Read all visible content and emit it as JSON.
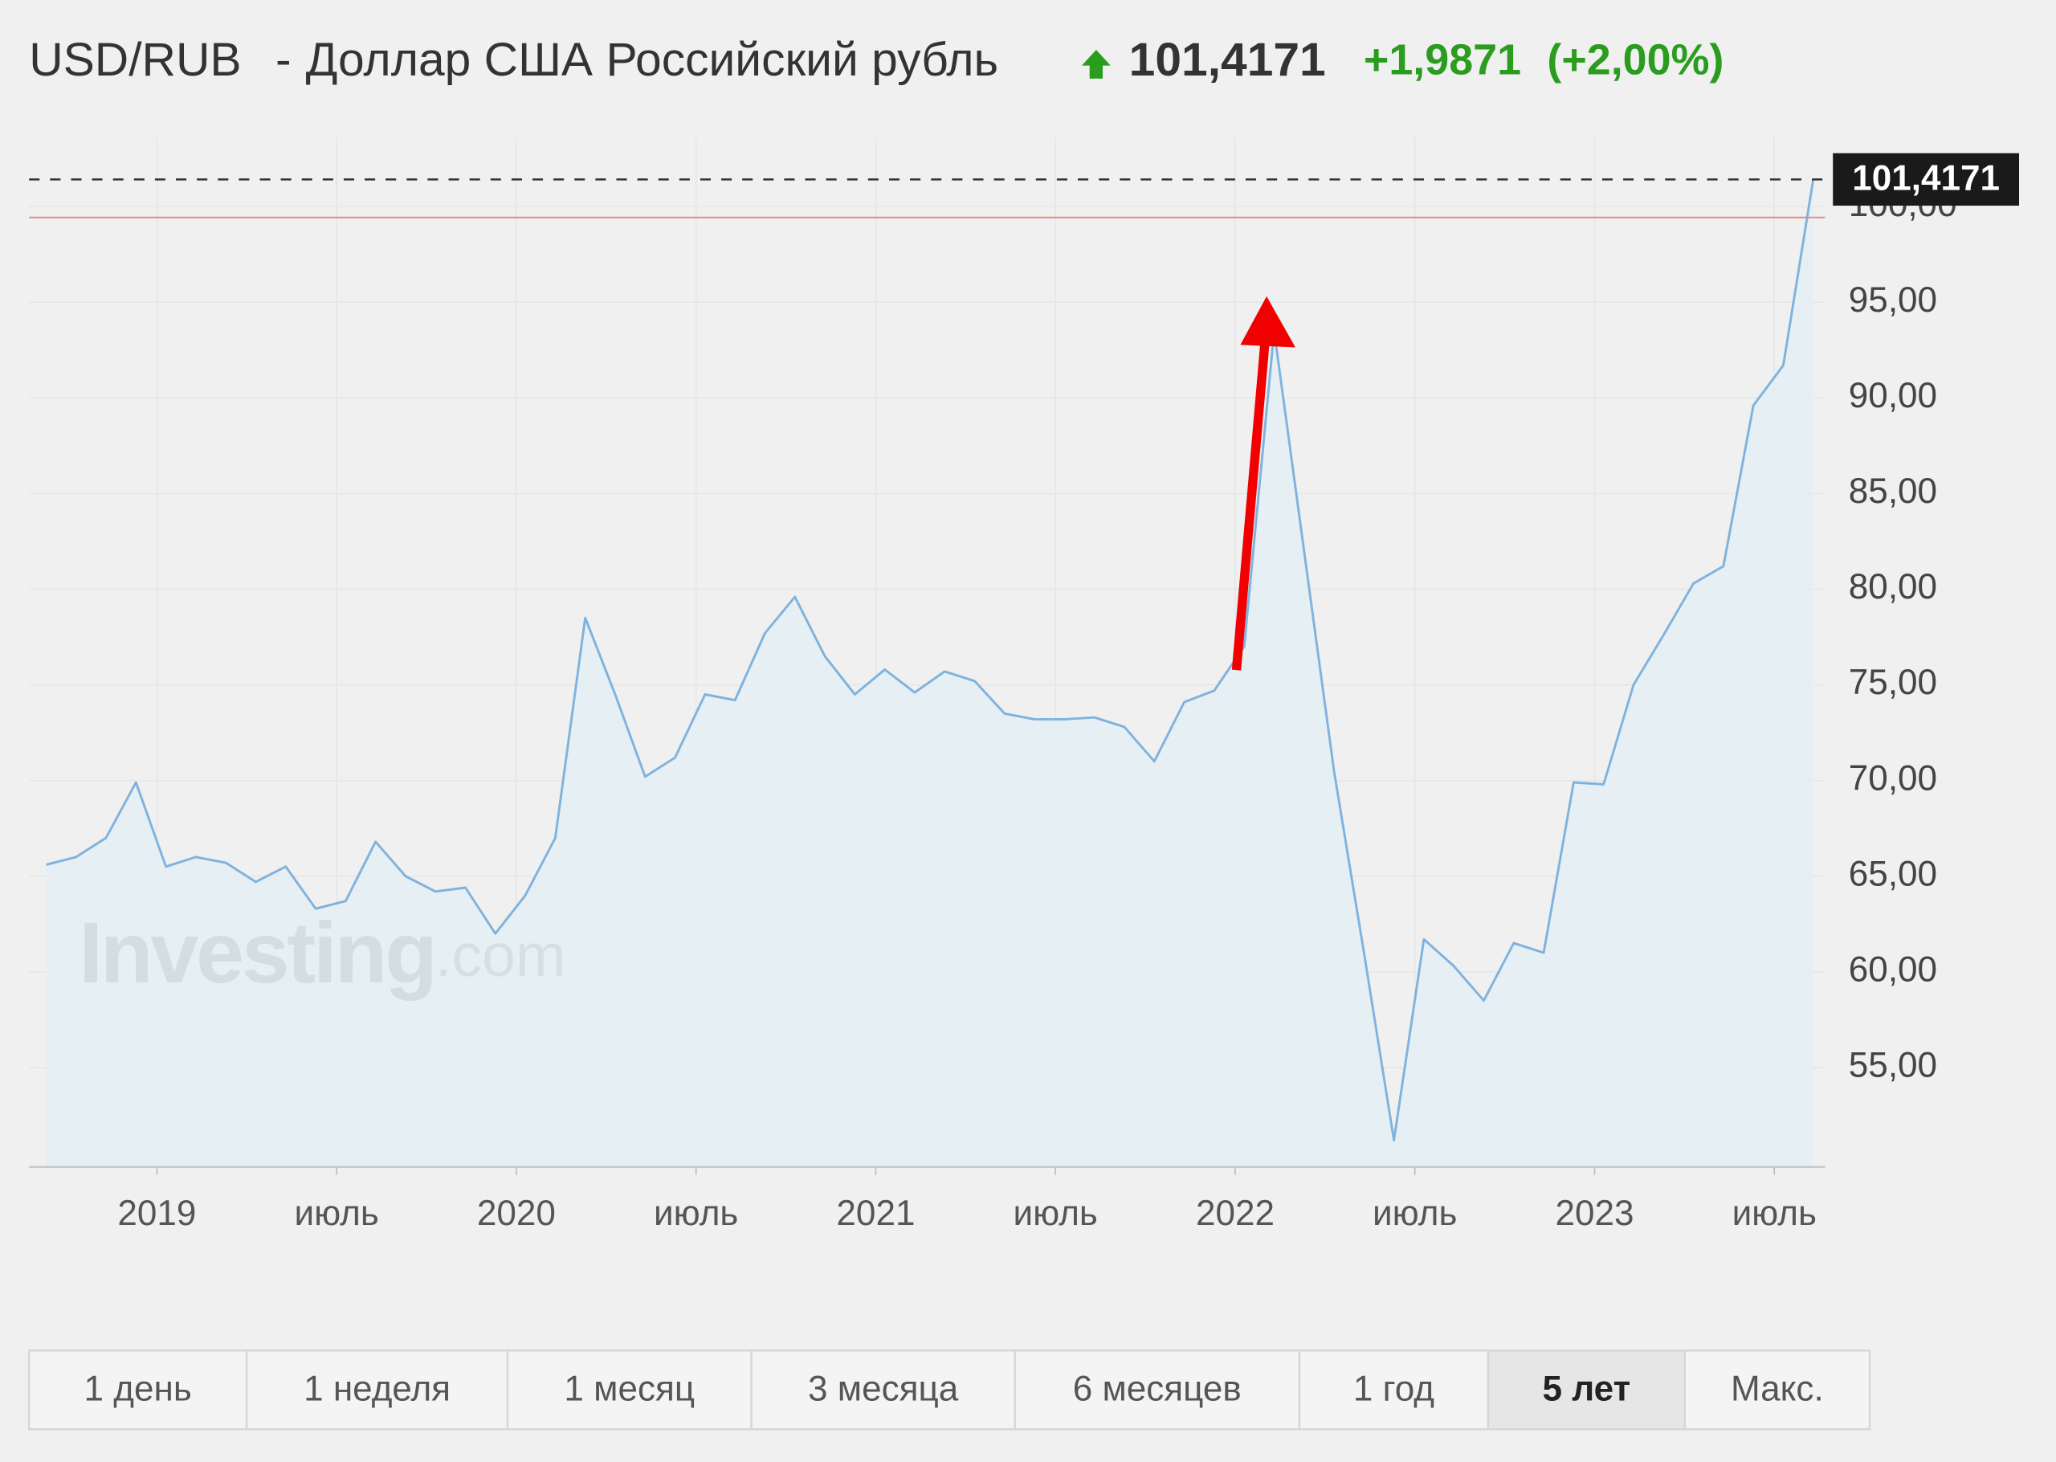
{
  "header": {
    "pair": "USD/RUB",
    "separator": "-",
    "name": "Доллар США Российский рубль",
    "price": "101,4171",
    "change": "+1,9871",
    "change_percent": "(+2,00%)"
  },
  "chart_data": {
    "type": "area",
    "categories": [
      null,
      null,
      null,
      null,
      "2019",
      null,
      null,
      null,
      null,
      null,
      "июль",
      null,
      null,
      null,
      null,
      null,
      "2020",
      null,
      null,
      null,
      null,
      null,
      "июль",
      null,
      null,
      null,
      null,
      null,
      "2021",
      null,
      null,
      null,
      null,
      null,
      "июль",
      null,
      null,
      null,
      null,
      null,
      "2022",
      null,
      null,
      null,
      null,
      null,
      "июль",
      null,
      null,
      null,
      null,
      null,
      "2023",
      null,
      null,
      null,
      null,
      null,
      "июль",
      null
    ],
    "series": [
      {
        "name": "USD/RUB",
        "color": "#7fb3de",
        "values": [
          65.6,
          66.0,
          67.0,
          69.9,
          65.5,
          66.0,
          65.7,
          64.7,
          65.5,
          63.3,
          63.7,
          66.8,
          65.0,
          64.2,
          64.4,
          62.0,
          64.0,
          67.0,
          78.5,
          74.5,
          70.2,
          71.2,
          74.5,
          74.2,
          77.7,
          79.6,
          76.5,
          74.5,
          75.8,
          74.6,
          75.7,
          75.2,
          73.5,
          73.2,
          73.2,
          73.3,
          72.8,
          71.0,
          74.1,
          74.7,
          77.0,
          93.5,
          82.0,
          70.5,
          61.0,
          51.2,
          61.7,
          60.3,
          58.5,
          61.5,
          61.0,
          69.9,
          69.8,
          75.0,
          77.6,
          80.3,
          81.2,
          89.6,
          91.7,
          101.4171
        ]
      }
    ],
    "ylim": [
      49.8,
      103.6
    ],
    "yticks": [
      {
        "value": 55,
        "label": "55,00"
      },
      {
        "value": 60,
        "label": "60,00"
      },
      {
        "value": 65,
        "label": "65,00"
      },
      {
        "value": 70,
        "label": "70,00"
      },
      {
        "value": 75,
        "label": "75,00"
      },
      {
        "value": 80,
        "label": "80,00"
      },
      {
        "value": 85,
        "label": "85,00"
      },
      {
        "value": 90,
        "label": "90,00"
      },
      {
        "value": 95,
        "label": "95,00"
      },
      {
        "value": 100,
        "label": "100,00"
      }
    ],
    "current_value": {
      "value": 101.4171,
      "label": "101,4171"
    },
    "reference_line": 99.43,
    "grid": true,
    "watermark": [
      "Investing",
      ".com"
    ]
  },
  "range_buttons": [
    "1 день",
    "1 неделя",
    "1 месяц",
    "3 месяца",
    "6 месяцев",
    "1 год",
    "5 лет",
    "Макс."
  ],
  "active_button": "5 лет"
}
